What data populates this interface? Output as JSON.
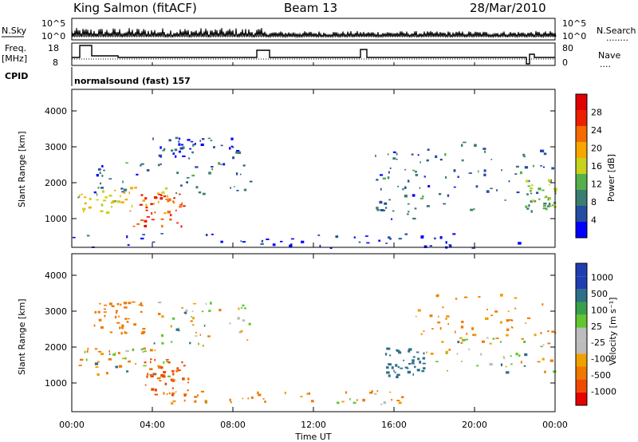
{
  "header": {
    "station": "King Salmon (fitACF)",
    "beam": "Beam 13",
    "date": "28/Mar/2010"
  },
  "labels": {
    "nsky": "N.Sky",
    "nsearch": "N.Search",
    "nsearch_legend": "........",
    "freq_line1": "Freq.",
    "freq_line2": "[MHz]",
    "nave": "Nave",
    "nave_legend": "....",
    "cpid": "CPID",
    "cpid_value": "normalsound (fast) 157"
  },
  "noise_axis": {
    "left": [
      "10^5",
      "10^0"
    ],
    "right": [
      "10^5",
      "10^0"
    ]
  },
  "freq_axis": {
    "left": [
      "18",
      "8"
    ],
    "right": [
      "80",
      "0"
    ]
  },
  "colors": {
    "background": "#ffffff",
    "power": [
      "#0000ff",
      "#234ea1",
      "#3c7d72",
      "#55b04a",
      "#c8d21b",
      "#f7a800",
      "#f46a00",
      "#ec1f00",
      "#e00000"
    ],
    "velocity_pos": [
      "#1f3fb0",
      "#2e6f8a",
      "#39a04a",
      "#62c630"
    ],
    "velocity_zero": "#bdbdbd",
    "velocity_neg": [
      "#f0a000",
      "#f07800",
      "#ef4a00",
      "#e60000"
    ]
  },
  "chart_data": [
    {
      "type": "heatmap",
      "title": "Power",
      "xlabel": "Time UT",
      "ylabel": "Slant Range [km]",
      "xlim": [
        "00:00",
        "24:00"
      ],
      "x_ticks": [
        "00:00",
        "04:00",
        "08:00",
        "12:00",
        "16:00",
        "20:00",
        "00:00"
      ],
      "y_ticks": [
        1000,
        2000,
        3000,
        4000
      ],
      "ylim": [
        200,
        4600
      ],
      "colorbar_label": "Power [dB]",
      "colorbar_ticks": [
        4,
        8,
        12,
        16,
        20,
        24,
        28
      ],
      "colorbar_range": [
        0,
        32
      ],
      "features": [
        {
          "t_start": 0.2,
          "t_end": 4.8,
          "r_start": 1200,
          "r_end": 1900,
          "level": 20
        },
        {
          "t_start": 3.0,
          "t_end": 5.6,
          "r_start": 800,
          "r_end": 1700,
          "level": 28
        },
        {
          "t_start": 1.0,
          "t_end": 9.0,
          "r_start": 1700,
          "r_end": 2600,
          "level": 8
        },
        {
          "t_start": 4.0,
          "t_end": 8.5,
          "r_start": 2700,
          "r_end": 3300,
          "level": 6
        },
        {
          "t_start": 0.0,
          "t_end": 22.5,
          "r_start": 200,
          "r_end": 600,
          "level": 4
        },
        {
          "t_start": 15.0,
          "t_end": 17.5,
          "r_start": 1000,
          "r_end": 2900,
          "level": 8
        },
        {
          "t_start": 17.5,
          "t_end": 24.0,
          "r_start": 1200,
          "r_end": 3200,
          "level": 8
        },
        {
          "t_start": 22.5,
          "t_end": 24.0,
          "r_start": 1300,
          "r_end": 2100,
          "level": 14
        }
      ]
    },
    {
      "type": "heatmap",
      "title": "Velocity",
      "xlabel": "Time UT",
      "ylabel": "Slant Range [km]",
      "xlim": [
        "00:00",
        "24:00"
      ],
      "x_ticks": [
        "00:00",
        "04:00",
        "08:00",
        "12:00",
        "16:00",
        "20:00",
        "00:00"
      ],
      "y_ticks": [
        1000,
        2000,
        3000,
        4000
      ],
      "ylim": [
        200,
        4600
      ],
      "colorbar_label": "Velocity [m s⁻¹]",
      "colorbar_ticks": [
        1000,
        500,
        100,
        25,
        -25,
        -100,
        -500,
        -1000
      ],
      "features": [
        {
          "t_start": 0.2,
          "t_end": 4.8,
          "r_start": 1200,
          "r_end": 2000,
          "velocity": 0
        },
        {
          "t_start": 3.5,
          "t_end": 5.8,
          "r_start": 600,
          "r_end": 1700,
          "velocity": -600
        },
        {
          "t_start": 1.0,
          "t_end": 3.5,
          "r_start": 2400,
          "r_end": 3300,
          "velocity": -300
        },
        {
          "t_start": 4.0,
          "t_end": 8.8,
          "r_start": 2000,
          "r_end": 3300,
          "velocity": 0
        },
        {
          "t_start": 4.5,
          "t_end": 16.5,
          "r_start": 400,
          "r_end": 800,
          "velocity": -100
        },
        {
          "t_start": 15.5,
          "t_end": 17.5,
          "r_start": 1200,
          "r_end": 2000,
          "velocity": 300
        },
        {
          "t_start": 17.5,
          "t_end": 24.0,
          "r_start": 1300,
          "r_end": 2300,
          "velocity": 0
        },
        {
          "t_start": 17.0,
          "t_end": 24.0,
          "r_start": 2300,
          "r_end": 3500,
          "velocity": -200
        }
      ]
    }
  ]
}
